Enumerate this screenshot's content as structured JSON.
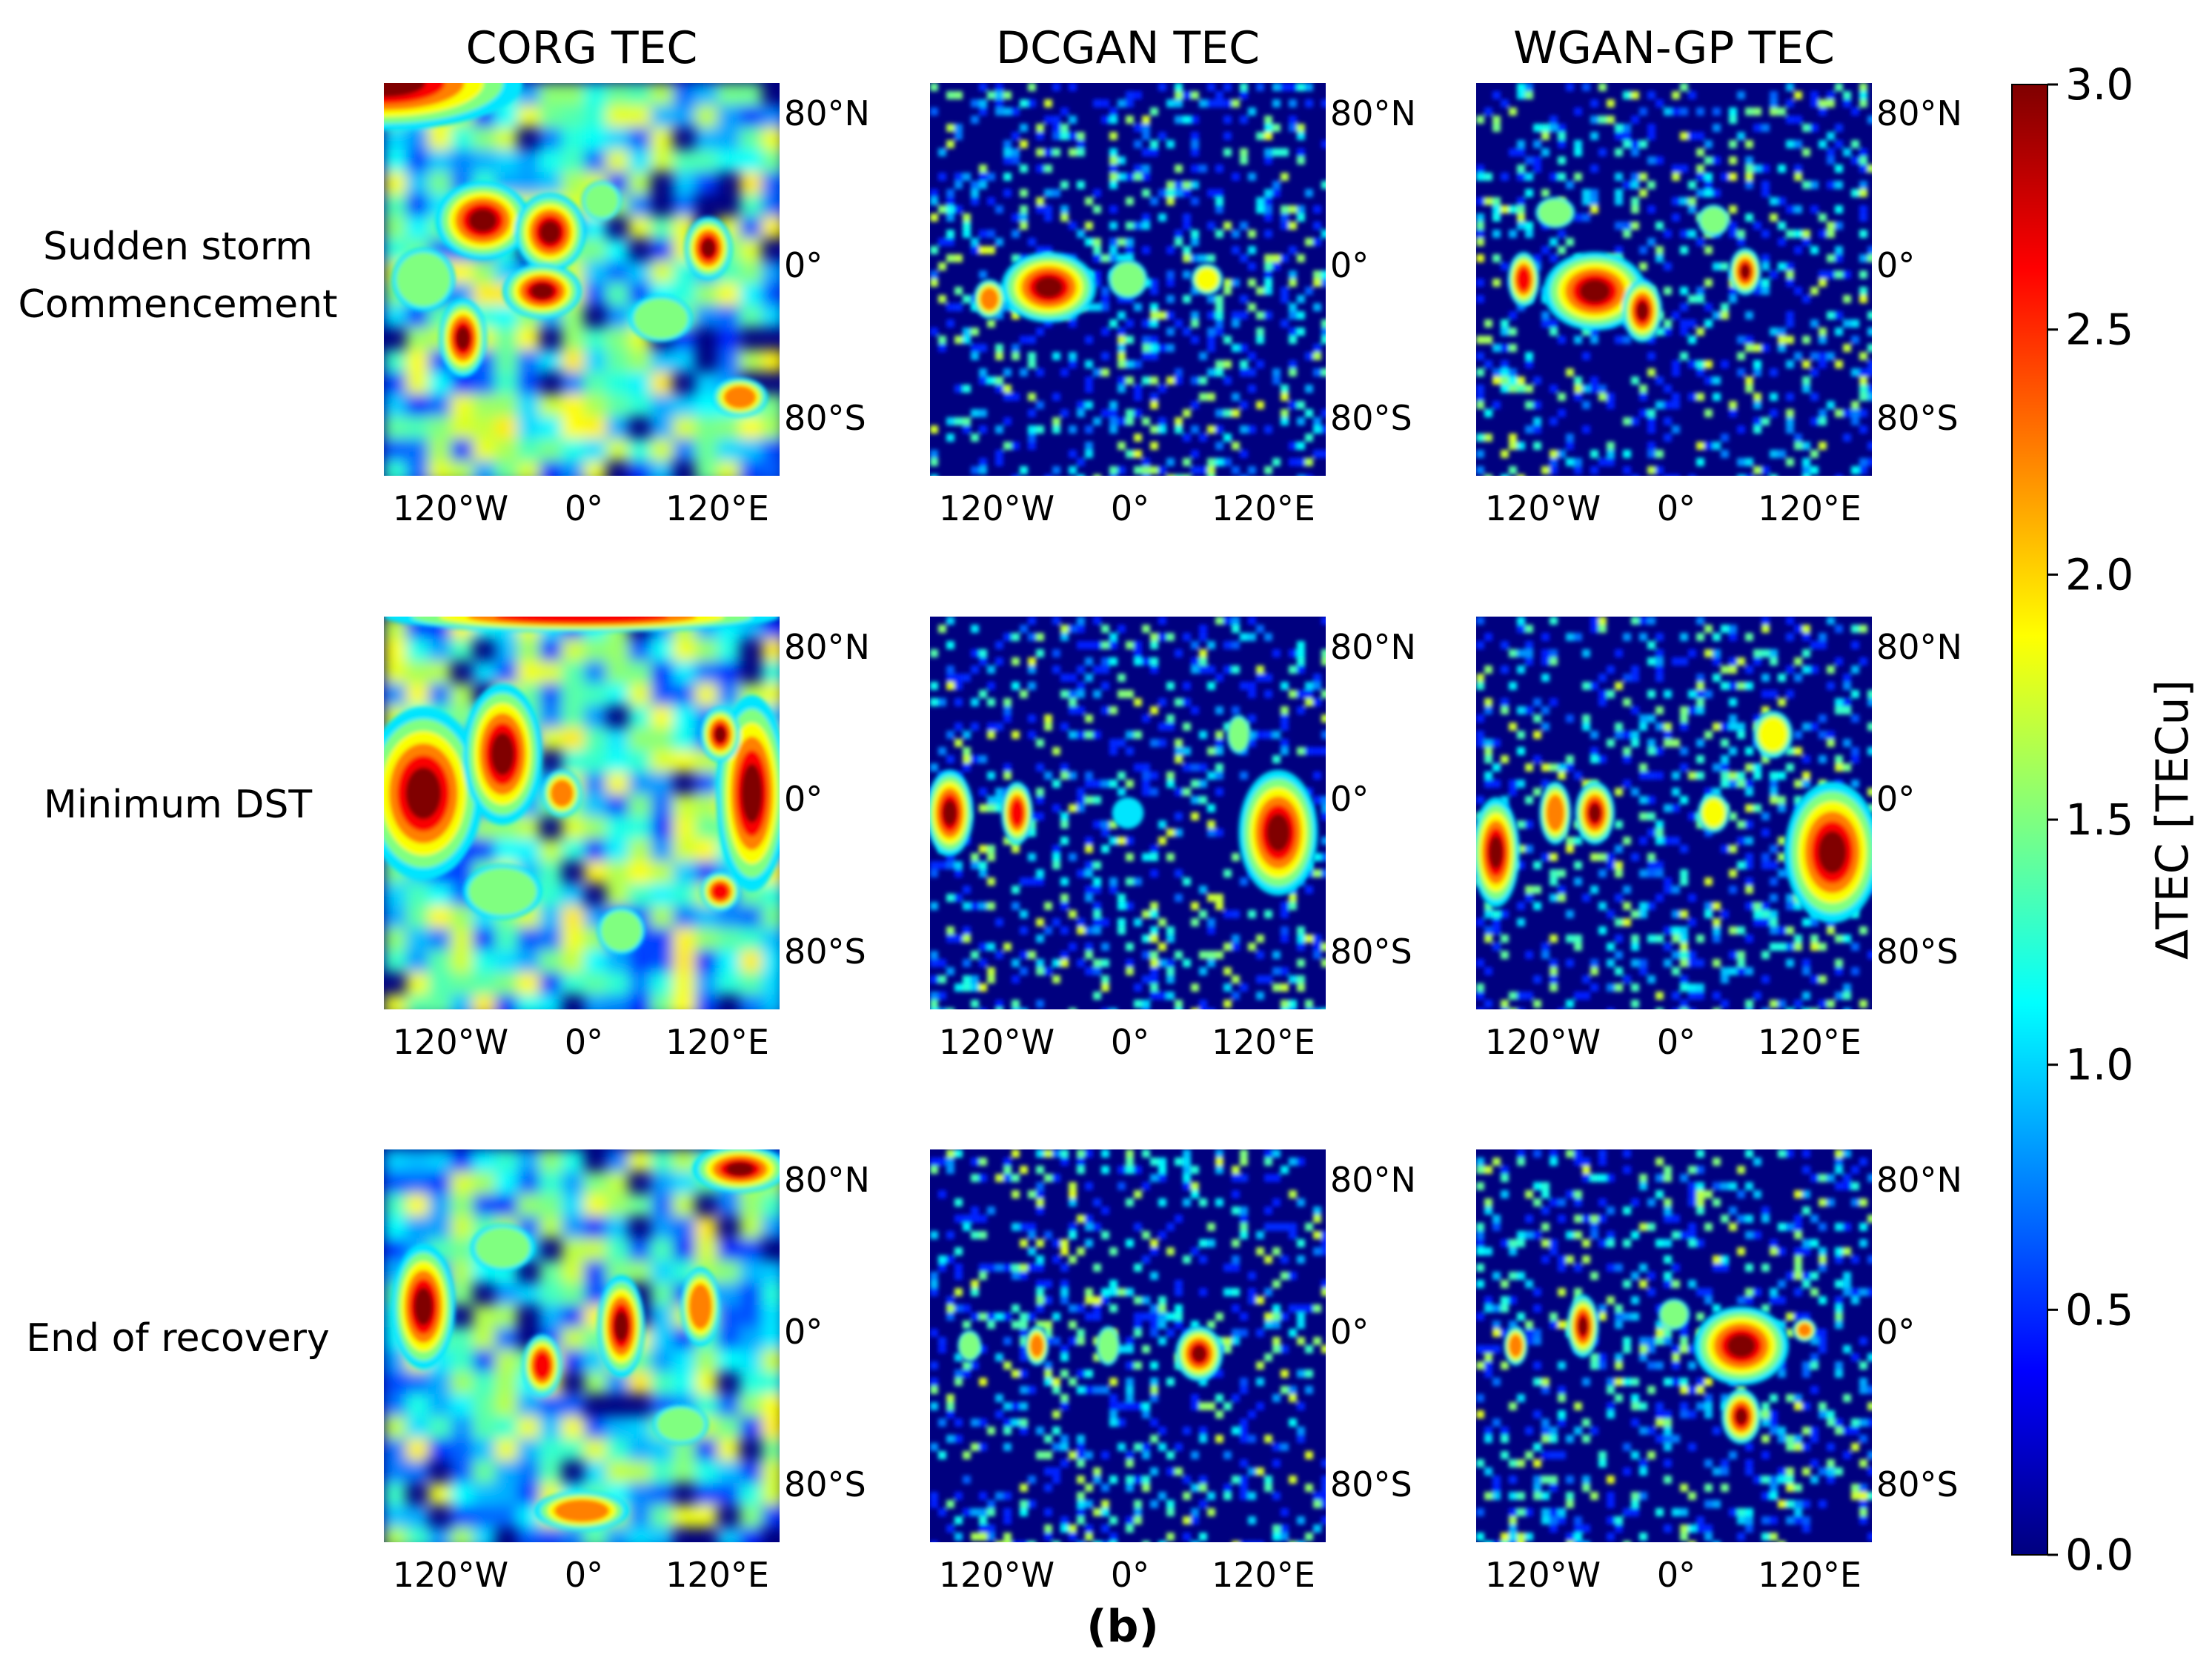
{
  "chart_data": {
    "type": "heatmap",
    "caption": "(b)",
    "columns": [
      "CORG TEC",
      "DCGAN TEC",
      "WGAN-GP TEC"
    ],
    "rows": [
      "Sudden storm\nCommencement",
      "Minimum DST",
      "End of recovery"
    ],
    "x_ticks": [
      "120°W",
      "0°",
      "120°E"
    ],
    "y_ticks": [
      "80°N",
      "0°",
      "80°S"
    ],
    "colorbar": {
      "label": "ΔTEC [TECu]",
      "min": 0.0,
      "max": 3.0,
      "ticks": [
        "0.0",
        "0.5",
        "1.0",
        "1.5",
        "2.0",
        "2.5",
        "3.0"
      ],
      "colormap": "jet"
    },
    "colors": {
      "background": "#00007f",
      "saturated": "#7f0000"
    }
  }
}
